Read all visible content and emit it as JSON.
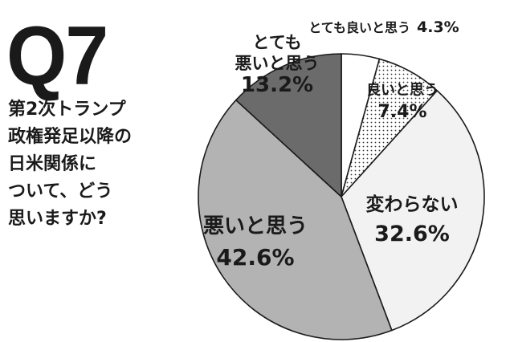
{
  "question": {
    "number": "Q7",
    "lines": [
      "第2次トランプ",
      "政権発足以降の",
      "日米関係に",
      "ついて、どう",
      "思いますか?"
    ]
  },
  "chart_data": {
    "type": "pie",
    "title": "",
    "slices": [
      {
        "label_lines": [
          "とても良いと思う"
        ],
        "value": 4.3,
        "value_text": "4.3%",
        "color": "#ffffff",
        "pattern": "none"
      },
      {
        "label_lines": [
          "良いと思う"
        ],
        "value": 7.4,
        "value_text": "7.4%",
        "color": "#ffffff",
        "pattern": "dots"
      },
      {
        "label_lines": [
          "変わらない"
        ],
        "value": 32.6,
        "value_text": "32.6%",
        "color": "#f2f2f2",
        "pattern": "none"
      },
      {
        "label_lines": [
          "悪いと思う"
        ],
        "value": 42.6,
        "value_text": "42.6%",
        "color": "#b3b3b3",
        "pattern": "none"
      },
      {
        "label_lines": [
          "とても",
          "悪いと思う"
        ],
        "value": 13.2,
        "value_text": "13.2%",
        "color": "#6b6b6b",
        "pattern": "none"
      }
    ],
    "start_angle_deg": 0,
    "direction": "clockwise",
    "unit": "%"
  }
}
